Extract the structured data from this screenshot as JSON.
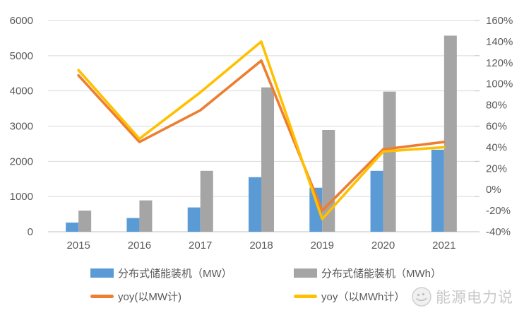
{
  "palette": {
    "background": "#FFFFFF",
    "gridline": "#D9D9D9",
    "axis_line": "#BFBFBF",
    "tick_label": "#595959",
    "watermark_gray": "#C9C9C9"
  },
  "chart_data": {
    "type": "combo (bar + line)",
    "title": "",
    "categories": [
      "2015",
      "2016",
      "2017",
      "2018",
      "2019",
      "2020",
      "2021"
    ],
    "bar_series": [
      {
        "key": "mw",
        "name": "分布式储能装机（MW）",
        "color": "#5B9BD5",
        "axis": "left",
        "values": [
          260,
          390,
          690,
          1550,
          1250,
          1730,
          2330
        ]
      },
      {
        "key": "mwh",
        "name": "分布式储能装机（MWh）",
        "color": "#A5A5A5",
        "axis": "left",
        "values": [
          600,
          890,
          1730,
          4100,
          2890,
          3980,
          5570
        ]
      }
    ],
    "line_series": [
      {
        "key": "yoy-mw",
        "name": "yoy(以MW计)",
        "color": "#ED7D31",
        "axis": "right",
        "unit": "%",
        "values": [
          108,
          45,
          75,
          122,
          -20,
          38,
          45
        ]
      },
      {
        "key": "yoy-mwh",
        "name": "yoy（以MWh计）",
        "color": "#FFC000",
        "axis": "right",
        "unit": "%",
        "values": [
          113,
          48,
          92,
          140,
          -28,
          36,
          40
        ]
      }
    ],
    "left_axis": {
      "min": 0,
      "max": 6000,
      "step": 1000,
      "tick_labels": [
        "0",
        "1000",
        "2000",
        "3000",
        "4000",
        "5000",
        "6000"
      ]
    },
    "right_axis": {
      "min": -40,
      "max": 160,
      "step": 20,
      "tick_labels": [
        "-40%",
        "-20%",
        "0%",
        "20%",
        "40%",
        "60%",
        "80%",
        "100%",
        "120%",
        "140%",
        "160%"
      ]
    },
    "grid": true,
    "legend_position": "bottom"
  },
  "watermark": {
    "text": "能源电力说",
    "icon": "round-cartoon-logo"
  }
}
